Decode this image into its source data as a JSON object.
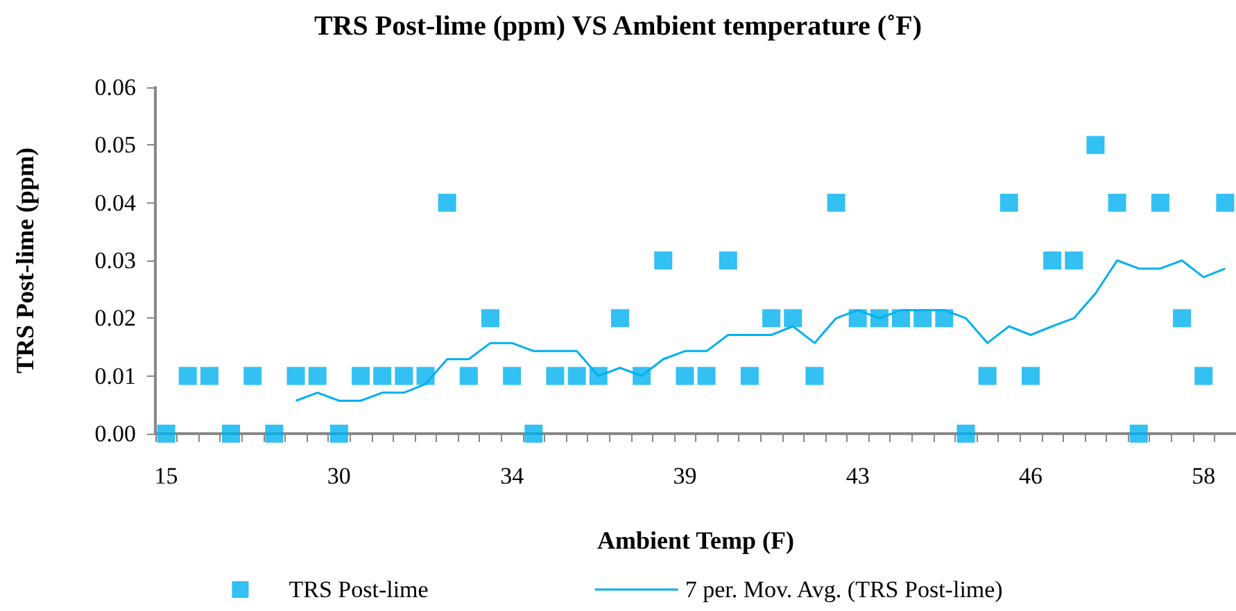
{
  "chart_data": {
    "type": "scatter",
    "title": "TRS Post-lime (ppm) VS Ambient temperature (˚F)",
    "xlabel": "Ambient Temp (F)",
    "ylabel": "TRS Post-lime (ppm)",
    "categories": [
      "15",
      null,
      null,
      null,
      null,
      null,
      null,
      null,
      "30",
      null,
      null,
      null,
      null,
      null,
      null,
      null,
      "34",
      null,
      null,
      null,
      null,
      null,
      null,
      null,
      "39",
      null,
      null,
      null,
      null,
      null,
      null,
      null,
      "43",
      null,
      null,
      null,
      null,
      null,
      null,
      null,
      "46",
      null,
      null,
      null,
      null,
      null,
      null,
      null,
      "58",
      null
    ],
    "series": [
      {
        "name": "TRS Post-lime",
        "marker": "square",
        "color": "#00b0f0",
        "values": [
          0,
          0.01,
          0.01,
          0,
          0.01,
          0,
          0.01,
          0.01,
          0,
          0.01,
          0.01,
          0.01,
          0.01,
          0.04,
          0.01,
          0.02,
          0.01,
          0,
          0.01,
          0.01,
          0.01,
          0.02,
          0.01,
          0.03,
          0.01,
          0.01,
          0.03,
          0.01,
          0.02,
          0.02,
          0.01,
          0.04,
          0.02,
          0.02,
          0.02,
          0.02,
          0.02,
          0,
          0.01,
          0.04,
          0.01,
          0.03,
          0.03,
          0.05,
          0.04,
          0,
          0.04,
          0.02,
          0.01,
          0.04
        ]
      },
      {
        "name": "7 per. Mov. Avg. (TRS Post-lime)",
        "type": "line",
        "marker": "none",
        "line_style": "solid",
        "color": "#00b0f0",
        "values": [
          null,
          null,
          null,
          null,
          null,
          null,
          0.0057,
          0.0071,
          0.0057,
          0.0057,
          0.0071,
          0.0071,
          0.0086,
          0.0129,
          0.0129,
          0.0157,
          0.0157,
          0.0143,
          0.0143,
          0.0143,
          0.01,
          0.0114,
          0.01,
          0.0129,
          0.0143,
          0.0143,
          0.0171,
          0.0171,
          0.0171,
          0.0186,
          0.0157,
          0.02,
          0.0214,
          0.02,
          0.0214,
          0.0214,
          0.0214,
          0.02,
          0.0157,
          0.0186,
          0.0171,
          0.0186,
          0.02,
          0.0243,
          0.03,
          0.0286,
          0.0286,
          0.03,
          0.0271,
          0.0286
        ]
      }
    ],
    "ylim": [
      0,
      0.06
    ],
    "yticks": [
      {
        "value": 0,
        "label": "0.00"
      },
      {
        "value": 0.01,
        "label": "0.01"
      },
      {
        "value": 0.02,
        "label": "0.02"
      },
      {
        "value": 0.03,
        "label": "0.03"
      },
      {
        "value": 0.04,
        "label": "0.04"
      },
      {
        "value": 0.05,
        "label": "0.05"
      },
      {
        "value": 0.06,
        "label": "0.06"
      }
    ],
    "grid": false,
    "legend": "bottom"
  }
}
